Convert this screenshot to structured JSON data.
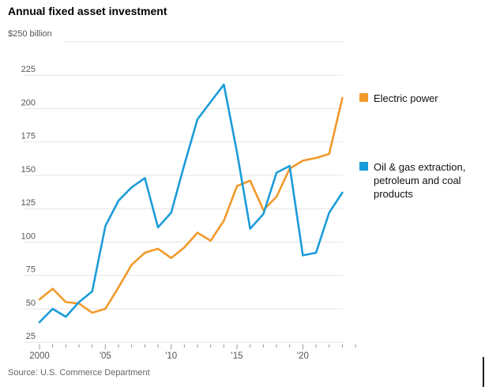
{
  "header": {
    "title": "Annual fixed asset investment",
    "unit_label": "$250 billion",
    "source": "Source: U.S. Commerce Department"
  },
  "colors": {
    "electric_power": "#F2992A",
    "oil_gas": "#1C9CD9",
    "gridline": "#E5E5E5",
    "tick": "#999999",
    "axis_label": "#555555"
  },
  "chart_data": {
    "type": "line",
    "title": "Annual fixed asset investment",
    "unit_label": "$250 billion",
    "xlabel": "",
    "ylabel": "$ billion",
    "ylim": [
      25,
      250
    ],
    "y_step": 25,
    "grid": true,
    "legend_position": "right",
    "x": [
      2000,
      2001,
      2002,
      2003,
      2004,
      2005,
      2006,
      2007,
      2008,
      2009,
      2010,
      2011,
      2012,
      2013,
      2014,
      2015,
      2016,
      2017,
      2018,
      2019,
      2020,
      2021,
      2022,
      2023
    ],
    "x_tick_labels": [
      "2000",
      "'05",
      "'10",
      "'15",
      "'20"
    ],
    "x_major_years": [
      2000,
      2005,
      2010,
      2015,
      2020
    ],
    "series": [
      {
        "name": "Electric power",
        "slug": "electric-power",
        "color": "#F2992A",
        "values": [
          57,
          65,
          55,
          54,
          47,
          50,
          66,
          83,
          92,
          95,
          88,
          96,
          107,
          101,
          116,
          142,
          146,
          124,
          134,
          155,
          161,
          163,
          166,
          208
        ]
      },
      {
        "name": "Oil & gas extraction, petroleum and coal products",
        "slug": "oil-gas",
        "color": "#1C9CD9",
        "values": [
          40,
          50,
          44,
          55,
          63,
          112,
          131,
          141,
          148,
          111,
          122,
          158,
          192,
          205,
          218,
          167,
          110,
          121,
          152,
          157,
          90,
          92,
          122,
          137
        ]
      }
    ],
    "source": "Source: U.S. Commerce Department"
  }
}
